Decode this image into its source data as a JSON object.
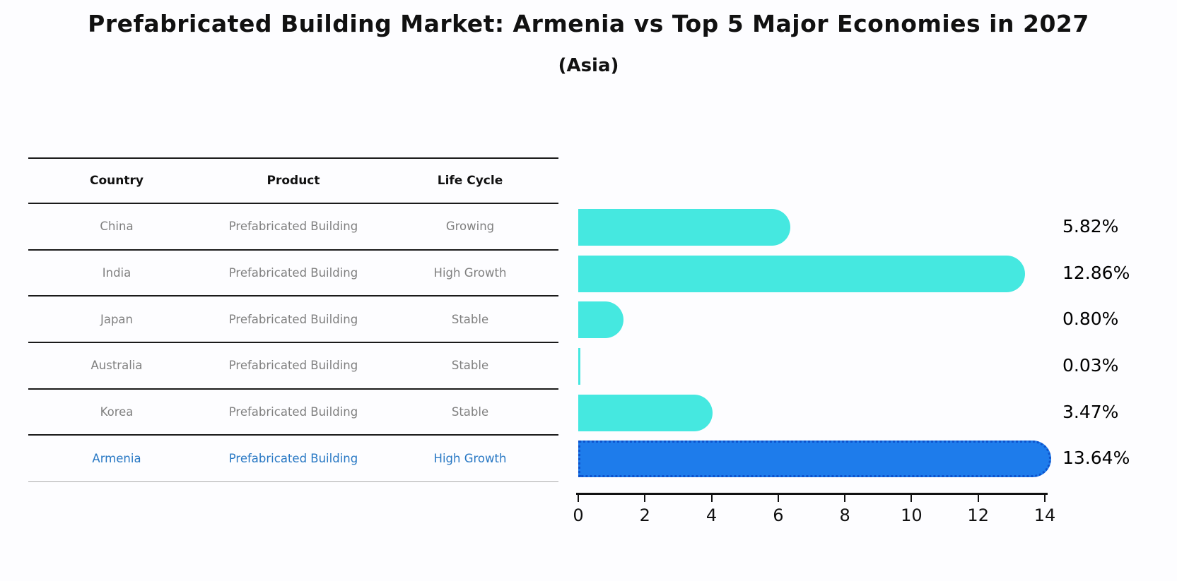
{
  "title": "Prefabricated Building Market: Armenia vs Top 5 Major Economies in 2027",
  "subtitle": "(Asia)",
  "table": {
    "headers": [
      "Country",
      "Product",
      "Life Cycle"
    ],
    "rows": [
      {
        "country": "China",
        "product": "Prefabricated Building",
        "life_cycle": "Growing",
        "value_label": "5.82%",
        "highlight": false
      },
      {
        "country": "India",
        "product": "Prefabricated Building",
        "life_cycle": "High Growth",
        "value_label": "12.86%",
        "highlight": false
      },
      {
        "country": "Japan",
        "product": "Prefabricated Building",
        "life_cycle": "Stable",
        "value_label": "0.80%",
        "highlight": false
      },
      {
        "country": "Australia",
        "product": "Prefabricated Building",
        "life_cycle": "Stable",
        "value_label": "0.03%",
        "highlight": false
      },
      {
        "country": "Korea",
        "product": "Prefabricated Building",
        "life_cycle": "Stable",
        "value_label": "3.47%",
        "highlight": false
      },
      {
        "country": "Armenia",
        "product": "Prefabricated Building",
        "life_cycle": "High Growth",
        "value_label": "13.64%",
        "highlight": true
      }
    ]
  },
  "chart_data": {
    "type": "bar",
    "orientation": "horizontal",
    "title": "Prefabricated Building Market: Armenia vs Top 5 Major Economies in 2027 (Asia)",
    "categories": [
      "China",
      "India",
      "Japan",
      "Australia",
      "Korea",
      "Armenia"
    ],
    "values": [
      5.82,
      12.86,
      0.8,
      0.03,
      3.47,
      13.64
    ],
    "value_labels": [
      "5.82%",
      "12.86%",
      "0.80%",
      "0.03%",
      "3.47%",
      "13.64%"
    ],
    "xlabel": "",
    "ylabel": "",
    "xlim": [
      0,
      14
    ],
    "xticks": [
      0,
      2,
      4,
      6,
      8,
      10,
      12,
      14
    ],
    "grid": false,
    "legend": false,
    "bar_color": "#45E8E0",
    "highlight_color": "#1E7CEB",
    "highlight_border_color": "#0D52CC",
    "highlight_index": 5
  },
  "colors": {
    "background": "#FDFDFF",
    "bar_cyan": "#45E8E0",
    "bar_blue": "#1E7CEB",
    "bar_blue_dotted_border": "#0D52CC",
    "table_text_gray": "#808080",
    "highlight_text_blue": "#2878C4",
    "line_black": "#1a1a1a"
  }
}
